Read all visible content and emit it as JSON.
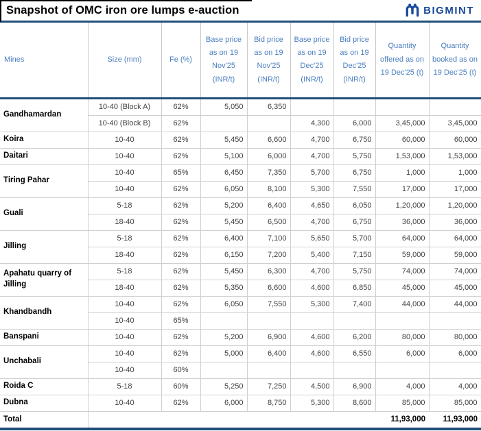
{
  "title": "Snapshot of OMC iron ore lumps e-auction",
  "brand": {
    "name": "BIGMINT",
    "logo_icon": "bigmint-m-mark",
    "color": "#1b4a9b"
  },
  "colors": {
    "header_text": "#4a7ebf",
    "accent_rule": "#1f4e79",
    "gridline": "#d0d0d0",
    "body_text": "#3f3f3f"
  },
  "chart_data": {
    "type": "table",
    "title": "Snapshot of OMC iron ore lumps e-auction",
    "columns": [
      "Mines",
      "Size (mm)",
      "Fe (%)",
      "Base price as on 19 Nov'25 (INR/t)",
      "Bid price as on 19 Nov'25 (INR/t)",
      "Base price as on 19 Dec'25 (INR/t)",
      "Bid price as on 19 Dec'25 (INR/t)",
      "Quantity offered as on 19 Dec'25 (t)",
      "Quantity booked as on 19 Dec'25 (t)"
    ],
    "rows": [
      {
        "mine": "Gandhamardan",
        "span": 2,
        "cells": [
          "10-40 (Block A)",
          "62%",
          "5,050",
          "6,350",
          "",
          "",
          "",
          ""
        ]
      },
      {
        "cells": [
          "10-40 (Block B)",
          "62%",
          "",
          "",
          "4,300",
          "6,000",
          "3,45,000",
          "3,45,000"
        ]
      },
      {
        "mine": "Koira",
        "span": 1,
        "cells": [
          "10-40",
          "62%",
          "5,450",
          "6,600",
          "4,700",
          "6,750",
          "60,000",
          "60,000"
        ]
      },
      {
        "mine": "Daitari",
        "span": 1,
        "cells": [
          "10-40",
          "62%",
          "5,100",
          "6,000",
          "4,700",
          "5,750",
          "1,53,000",
          "1,53,000"
        ]
      },
      {
        "mine": "Tiring Pahar",
        "span": 2,
        "cells": [
          "10-40",
          "65%",
          "6,450",
          "7,350",
          "5,700",
          "6,750",
          "1,000",
          "1,000"
        ]
      },
      {
        "cells": [
          "10-40",
          "62%",
          "6,050",
          "8,100",
          "5,300",
          "7,550",
          "17,000",
          "17,000"
        ]
      },
      {
        "mine": "Guali",
        "span": 2,
        "cells": [
          "5-18",
          "62%",
          "5,200",
          "6,400",
          "4,650",
          "6,050",
          "1,20,000",
          "1,20,000"
        ]
      },
      {
        "cells": [
          "18-40",
          "62%",
          "5,450",
          "6,500",
          "4,700",
          "6,750",
          "36,000",
          "36,000"
        ]
      },
      {
        "mine": "Jilling",
        "span": 2,
        "cells": [
          "5-18",
          "62%",
          "6,400",
          "7,100",
          "5,650",
          "5,700",
          "64,000",
          "64,000"
        ]
      },
      {
        "cells": [
          "18-40",
          "62%",
          "6,150",
          "7,200",
          "5,400",
          "7,150",
          "59,000",
          "59,000"
        ]
      },
      {
        "mine": "Apahatu quarry of Jilling",
        "span": 2,
        "cells": [
          "5-18",
          "62%",
          "5,450",
          "6,300",
          "4,700",
          "5,750",
          "74,000",
          "74,000"
        ]
      },
      {
        "cells": [
          "18-40",
          "62%",
          "5,350",
          "6,600",
          "4,600",
          "6,850",
          "45,000",
          "45,000"
        ]
      },
      {
        "mine": "Khandbandh",
        "span": 2,
        "cells": [
          "10-40",
          "62%",
          "6,050",
          "7,550",
          "5,300",
          "7,400",
          "44,000",
          "44,000"
        ]
      },
      {
        "cells": [
          "10-40",
          "65%",
          "",
          "",
          "",
          "",
          "",
          ""
        ]
      },
      {
        "mine": "Banspani",
        "span": 1,
        "cells": [
          "10-40",
          "62%",
          "5,200",
          "6,900",
          "4,600",
          "6,200",
          "80,000",
          "80,000"
        ]
      },
      {
        "mine": "Unchabali",
        "span": 2,
        "cells": [
          "10-40",
          "62%",
          "5,000",
          "6,400",
          "4,600",
          "6,550",
          "6,000",
          "6,000"
        ]
      },
      {
        "cells": [
          "10-40",
          "60%",
          "",
          "",
          "",
          "",
          "",
          ""
        ]
      },
      {
        "mine": "Roida C",
        "span": 1,
        "cells": [
          "5-18",
          "60%",
          "5,250",
          "7,250",
          "4,500",
          "6,900",
          "4,000",
          "4,000"
        ]
      },
      {
        "mine": "Dubna",
        "span": 1,
        "cells": [
          "10-40",
          "62%",
          "6,000",
          "8,750",
          "5,300",
          "8,600",
          "85,000",
          "85,000"
        ]
      }
    ],
    "total": {
      "label": "Total",
      "quantity_offered": "11,93,000",
      "quantity_booked": "11,93,000"
    }
  }
}
